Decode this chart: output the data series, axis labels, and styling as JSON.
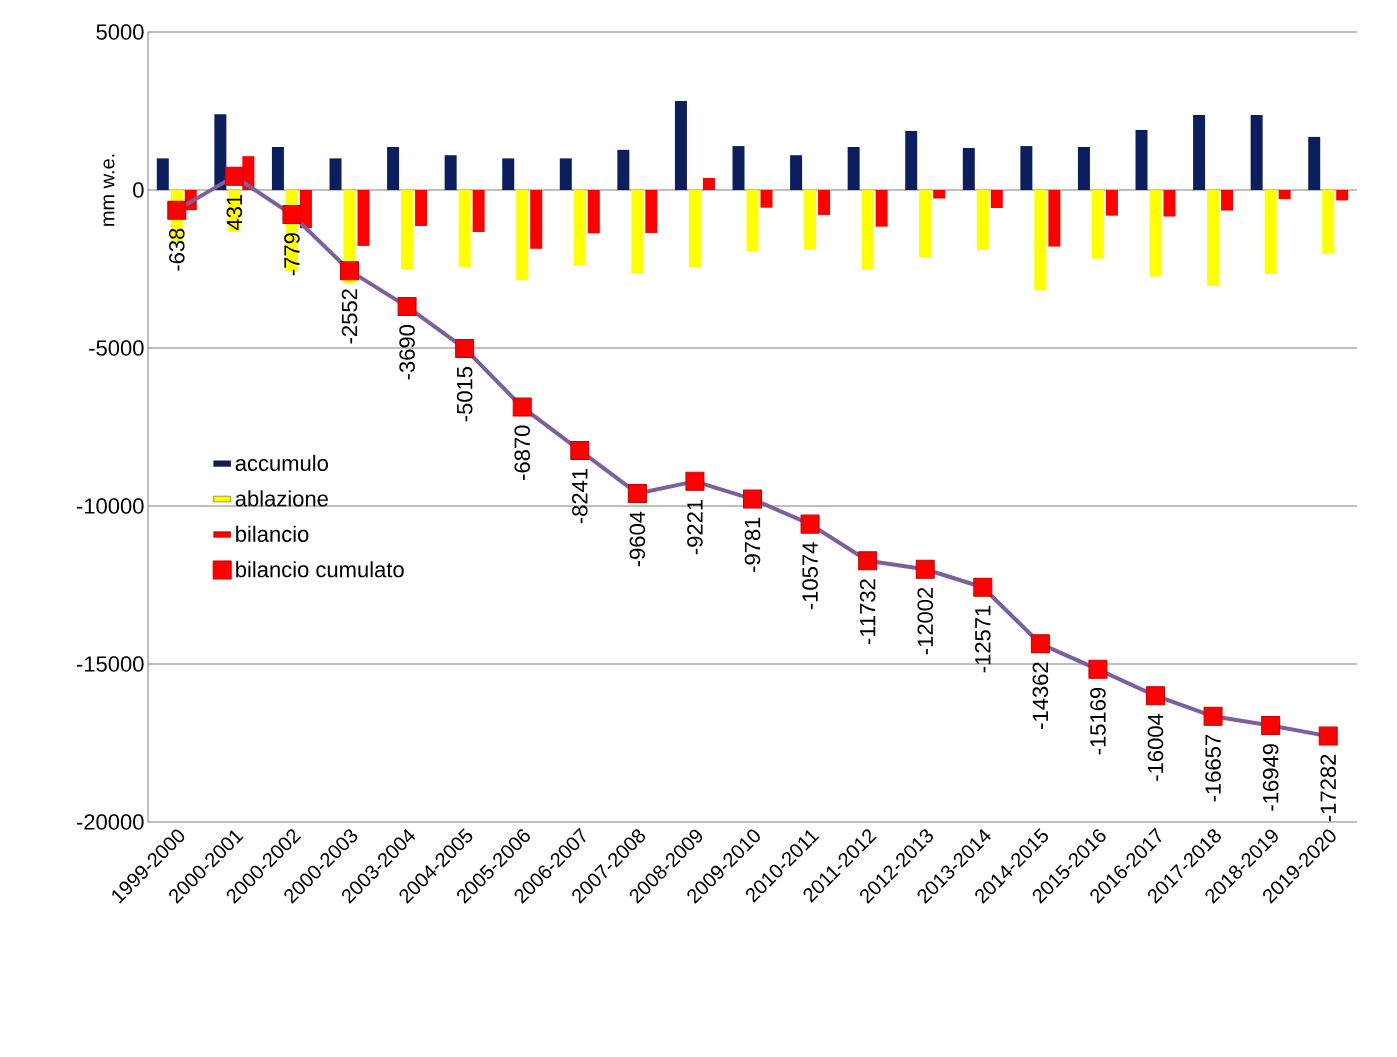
{
  "chart_data": {
    "type": "bar",
    "ylabel": "mm w.e.",
    "categories": [
      "1999-2000",
      "2000-2001",
      "2000-2002",
      "2000-2003",
      "2003-2004",
      "2004-2005",
      "2005-2006",
      "2006-2007",
      "2007-2008",
      "2008-2009",
      "2009-2010",
      "2010-2011",
      "2011-2012",
      "2012-2013",
      "2013-2014",
      "2014-2015",
      "2015-2016",
      "2016-2017",
      "2017-2018",
      "2018-2019",
      "2019-2020"
    ],
    "series": [
      {
        "name": "accumulo",
        "color": "#0b1f5e",
        "values": [
          1000,
          2400,
          1360,
          1000,
          1360,
          1100,
          1000,
          1000,
          1270,
          2820,
          1390,
          1100,
          1360,
          1870,
          1330,
          1390,
          1360,
          1900,
          2370,
          2370,
          1680
        ]
      },
      {
        "name": "ablazione",
        "color": "#ffff00",
        "values": [
          -1640,
          -1330,
          -2570,
          -2970,
          -2500,
          -2430,
          -2860,
          -2370,
          -2630,
          -2440,
          -1950,
          -1890,
          -2520,
          -2140,
          -1900,
          -3180,
          -2170,
          -2740,
          -3020,
          -2660,
          -2010
        ]
      },
      {
        "name": "bilancio",
        "color": "#ff0000",
        "values": [
          -640,
          1070,
          -1210,
          -1770,
          -1140,
          -1330,
          -1860,
          -1370,
          -1360,
          380,
          -560,
          -790,
          -1160,
          -270,
          -570,
          -1790,
          -810,
          -840,
          -650,
          -290,
          -330
        ]
      },
      {
        "name": "bilancio cumulato",
        "type": "line",
        "color": "#7b5f9e",
        "marker": "square",
        "values": [
          -638,
          431,
          -779,
          -2552,
          -3690,
          -5015,
          -6870,
          -8241,
          -9604,
          -9221,
          -9781,
          -10574,
          -11732,
          -12002,
          -12571,
          -14362,
          -15169,
          -16004,
          -16657,
          -16949,
          -17282
        ],
        "value_labels": [
          "-638",
          "431",
          "-779",
          "-2552",
          "-3690",
          "-5015",
          "-6870",
          "-8241",
          "-9604",
          "-9221",
          "-9781",
          "-10574",
          "-11732",
          "-12002",
          "-12571",
          "-14362",
          "-15169",
          "-16004",
          "-16657",
          "-16949",
          "-17282"
        ]
      }
    ],
    "ylim": [
      -20000,
      5000
    ],
    "yticks": [
      -20000,
      -15000,
      -10000,
      -5000,
      0,
      5000
    ],
    "grid": "y",
    "legend": "left"
  }
}
